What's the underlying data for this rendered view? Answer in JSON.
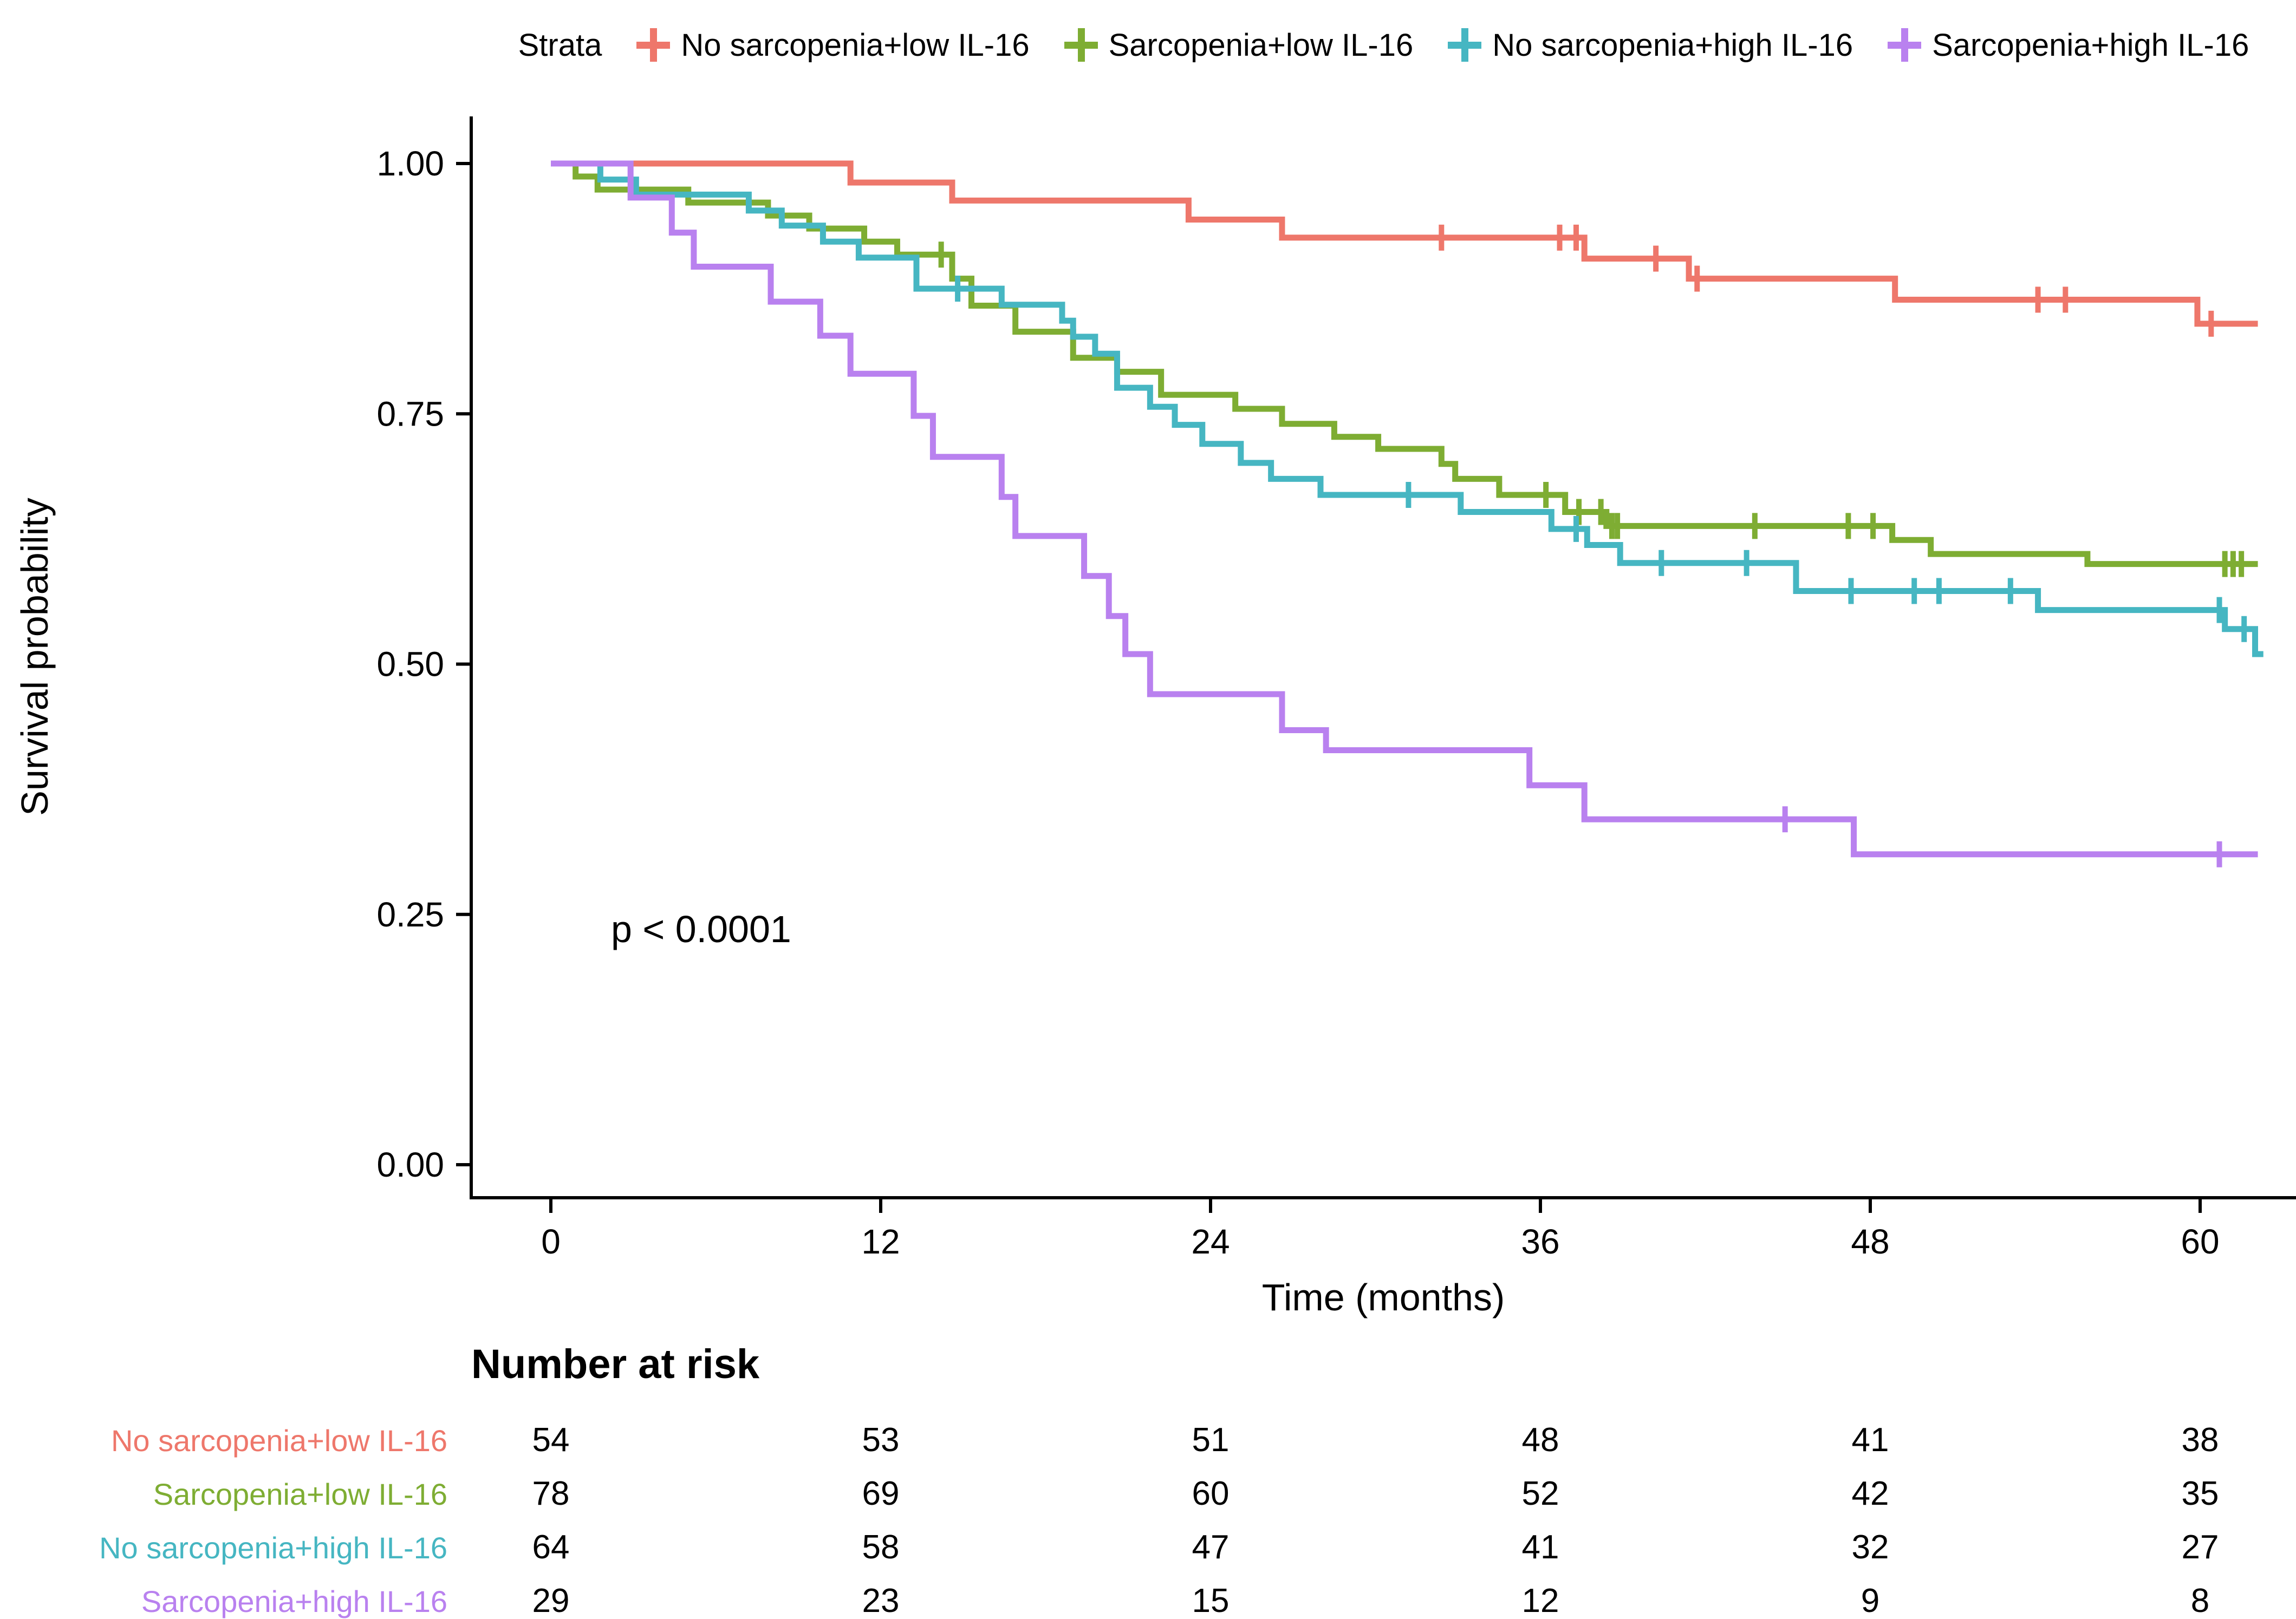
{
  "figure": {
    "legend": {
      "title": "Strata",
      "items": [
        {
          "label": "No sarcopenia+low IL-16",
          "color": "#ee776b"
        },
        {
          "label": "Sarcopenia+low IL-16",
          "color": "#7ead33"
        },
        {
          "label": "No sarcopenia+high IL-16",
          "color": "#46b6c2"
        },
        {
          "label": "Sarcopenia+high IL-16",
          "color": "#b981ef"
        }
      ]
    },
    "y_axis": {
      "title": "Survival probability",
      "tick_labels": [
        "1.00",
        "0.75",
        "0.50",
        "0.25",
        "0.00"
      ],
      "tick_values": [
        1,
        0.75,
        0.5,
        0.25,
        0
      ]
    },
    "x_axis": {
      "title": "Time (months)",
      "tick_values": [
        0,
        12,
        24,
        36,
        48,
        60
      ]
    },
    "p_value": "p < 0.0001",
    "risk_table": {
      "title": "Number at risk",
      "time_points": [
        0,
        12,
        24,
        36,
        48,
        60
      ],
      "rows": [
        {
          "label": "No sarcopenia+low IL-16",
          "color": "#ee776b",
          "values": [
            54,
            53,
            51,
            48,
            41,
            38
          ]
        },
        {
          "label": "Sarcopenia+low IL-16",
          "color": "#7ead33",
          "values": [
            78,
            69,
            60,
            52,
            42,
            35
          ]
        },
        {
          "label": "No sarcopenia+high IL-16",
          "color": "#46b6c2",
          "values": [
            64,
            58,
            47,
            41,
            32,
            27
          ]
        },
        {
          "label": "Sarcopenia+high IL-16",
          "color": "#b981ef",
          "values": [
            29,
            23,
            15,
            12,
            9,
            8
          ]
        }
      ]
    }
  },
  "chart_data": {
    "type": "line",
    "subtype": "kaplan-meier-step",
    "title": "",
    "xlabel": "Time (months)",
    "ylabel": "Survival probability",
    "xlim": [
      0,
      63.5
    ],
    "ylim": [
      0,
      1.0
    ],
    "x_ticks": [
      0,
      12,
      24,
      36,
      48,
      60
    ],
    "y_ticks": [
      0,
      0.25,
      0.5,
      0.75,
      1.0
    ],
    "grid": false,
    "legend_position": "top",
    "annotations": [
      {
        "text": "p < 0.0001",
        "x": 2.2,
        "y": 0.225
      }
    ],
    "series": [
      {
        "name": "No sarcopenia+low IL-16",
        "color": "#ee776b",
        "points": [
          [
            0,
            1
          ],
          [
            10.9,
            0.981
          ],
          [
            14.6,
            0.963
          ],
          [
            23.2,
            0.944
          ],
          [
            26.6,
            0.926
          ],
          [
            37.6,
            0.905
          ],
          [
            41.4,
            0.885
          ],
          [
            48.9,
            0.864
          ],
          [
            59.9,
            0.84
          ],
          [
            62.1,
            0.84
          ]
        ],
        "censor_times": [
          32.4,
          36.7,
          37.3,
          40.2,
          41.7,
          54.1,
          55.1,
          60.4
        ]
      },
      {
        "name": "Sarcopenia+low IL-16",
        "color": "#7ead33",
        "points": [
          [
            0,
            1
          ],
          [
            0.9,
            0.987
          ],
          [
            1.7,
            0.974
          ],
          [
            5.0,
            0.961
          ],
          [
            7.9,
            0.948
          ],
          [
            9.4,
            0.935
          ],
          [
            11.4,
            0.922
          ],
          [
            12.6,
            0.909
          ],
          [
            14.6,
            0.885
          ],
          [
            15.3,
            0.858
          ],
          [
            16.9,
            0.832
          ],
          [
            19.0,
            0.806
          ],
          [
            20.6,
            0.792
          ],
          [
            22.2,
            0.769
          ],
          [
            24.9,
            0.755
          ],
          [
            26.6,
            0.74
          ],
          [
            28.5,
            0.727
          ],
          [
            30.1,
            0.715
          ],
          [
            32.4,
            0.7
          ],
          [
            32.9,
            0.685
          ],
          [
            34.5,
            0.669
          ],
          [
            36.9,
            0.652
          ],
          [
            38.4,
            0.638
          ],
          [
            48.8,
            0.624
          ],
          [
            50.2,
            0.61
          ],
          [
            55.9,
            0.6
          ],
          [
            62.1,
            0.6
          ]
        ],
        "censor_times": [
          14.2,
          36.2,
          37.4,
          38.2,
          38.6,
          38.8,
          43.8,
          47.2,
          48.1,
          60.9,
          61.2,
          61.5
        ]
      },
      {
        "name": "No sarcopenia+high IL-16",
        "color": "#46b6c2",
        "points": [
          [
            0,
            1
          ],
          [
            1.8,
            0.984
          ],
          [
            3.1,
            0.969
          ],
          [
            7.2,
            0.953
          ],
          [
            8.4,
            0.938
          ],
          [
            9.9,
            0.922
          ],
          [
            11.2,
            0.906
          ],
          [
            13.3,
            0.875
          ],
          [
            16.4,
            0.859
          ],
          [
            18.6,
            0.843
          ],
          [
            19.0,
            0.827
          ],
          [
            19.8,
            0.81
          ],
          [
            20.6,
            0.776
          ],
          [
            21.8,
            0.757
          ],
          [
            22.7,
            0.739
          ],
          [
            23.7,
            0.72
          ],
          [
            25.1,
            0.701
          ],
          [
            26.2,
            0.685
          ],
          [
            28.0,
            0.669
          ],
          [
            33.1,
            0.652
          ],
          [
            36.4,
            0.635
          ],
          [
            37.7,
            0.619
          ],
          [
            38.9,
            0.601
          ],
          [
            45.3,
            0.573
          ],
          [
            54.1,
            0.554
          ],
          [
            60.9,
            0.535
          ],
          [
            62.0,
            0.51
          ],
          [
            62.3,
            0.51
          ]
        ],
        "censor_times": [
          14.8,
          31.2,
          37.3,
          40.4,
          43.5,
          47.3,
          49.6,
          50.5,
          53.1,
          60.7,
          61.6
        ]
      },
      {
        "name": "Sarcopenia+high IL-16",
        "color": "#b981ef",
        "points": [
          [
            0,
            1
          ],
          [
            2.9,
            0.966
          ],
          [
            4.4,
            0.931
          ],
          [
            5.2,
            0.897
          ],
          [
            8.0,
            0.862
          ],
          [
            9.8,
            0.828
          ],
          [
            10.9,
            0.79
          ],
          [
            13.2,
            0.748
          ],
          [
            13.9,
            0.707
          ],
          [
            16.4,
            0.667
          ],
          [
            16.9,
            0.628
          ],
          [
            19.4,
            0.588
          ],
          [
            20.3,
            0.548
          ],
          [
            20.9,
            0.51
          ],
          [
            21.8,
            0.47
          ],
          [
            26.6,
            0.434
          ],
          [
            28.2,
            0.414
          ],
          [
            35.6,
            0.379
          ],
          [
            37.6,
            0.345
          ],
          [
            47.4,
            0.31
          ],
          [
            62.1,
            0.31
          ]
        ],
        "censor_times": [
          44.9,
          60.7
        ]
      }
    ]
  }
}
